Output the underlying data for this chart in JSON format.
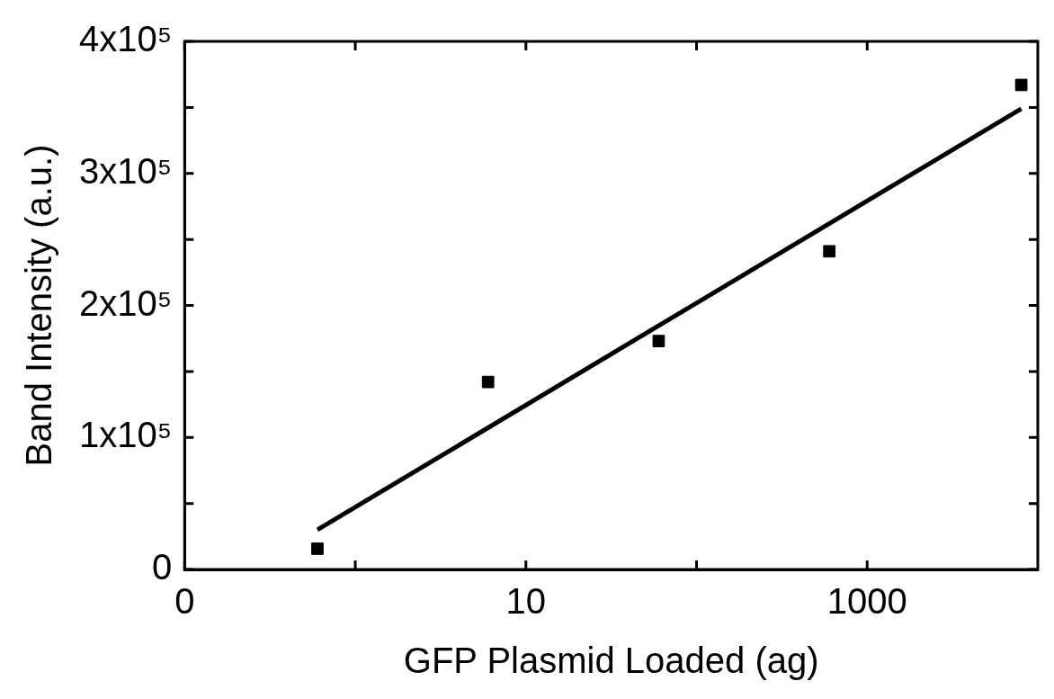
{
  "chart_data": {
    "type": "scatter",
    "xlabel": "GFP Plasmid Loaded (ag)",
    "ylabel": "Band Intensity (a.u.)",
    "log": "x",
    "xlim": [
      0.1,
      10000
    ],
    "xticks": [
      {
        "value": 0.1,
        "label": "0"
      },
      {
        "value": 1,
        "label": null
      },
      10,
      {
        "value": 100,
        "label": null
      },
      1000
    ],
    "ylim": [
      0,
      400000
    ],
    "yticks": [
      {
        "value": 0,
        "label": "0"
      },
      {
        "value": 50000,
        "label": null
      },
      {
        "value": 100000,
        "label": "1x10⁵"
      },
      {
        "value": 150000,
        "label": null
      },
      {
        "value": 200000,
        "label": "2x10⁵"
      },
      {
        "value": 250000,
        "label": null
      },
      {
        "value": 300000,
        "label": "3x10⁵"
      },
      {
        "value": 350000,
        "label": null
      },
      {
        "value": 400000,
        "label": "4x10⁵"
      }
    ],
    "grid": false,
    "legend": false,
    "series": [
      {
        "color": "#000000",
        "marker": "square",
        "x": [
          0.6,
          6,
          60,
          600,
          8000
        ],
        "values": [
          15700,
          142000,
          173000,
          241000,
          367000
        ]
      },
      {
        "type": "line",
        "color": "#000000",
        "marker": "none",
        "line_style": "solid",
        "x": [
          0.6,
          8000
        ],
        "values": [
          30000,
          349000
        ]
      }
    ]
  }
}
